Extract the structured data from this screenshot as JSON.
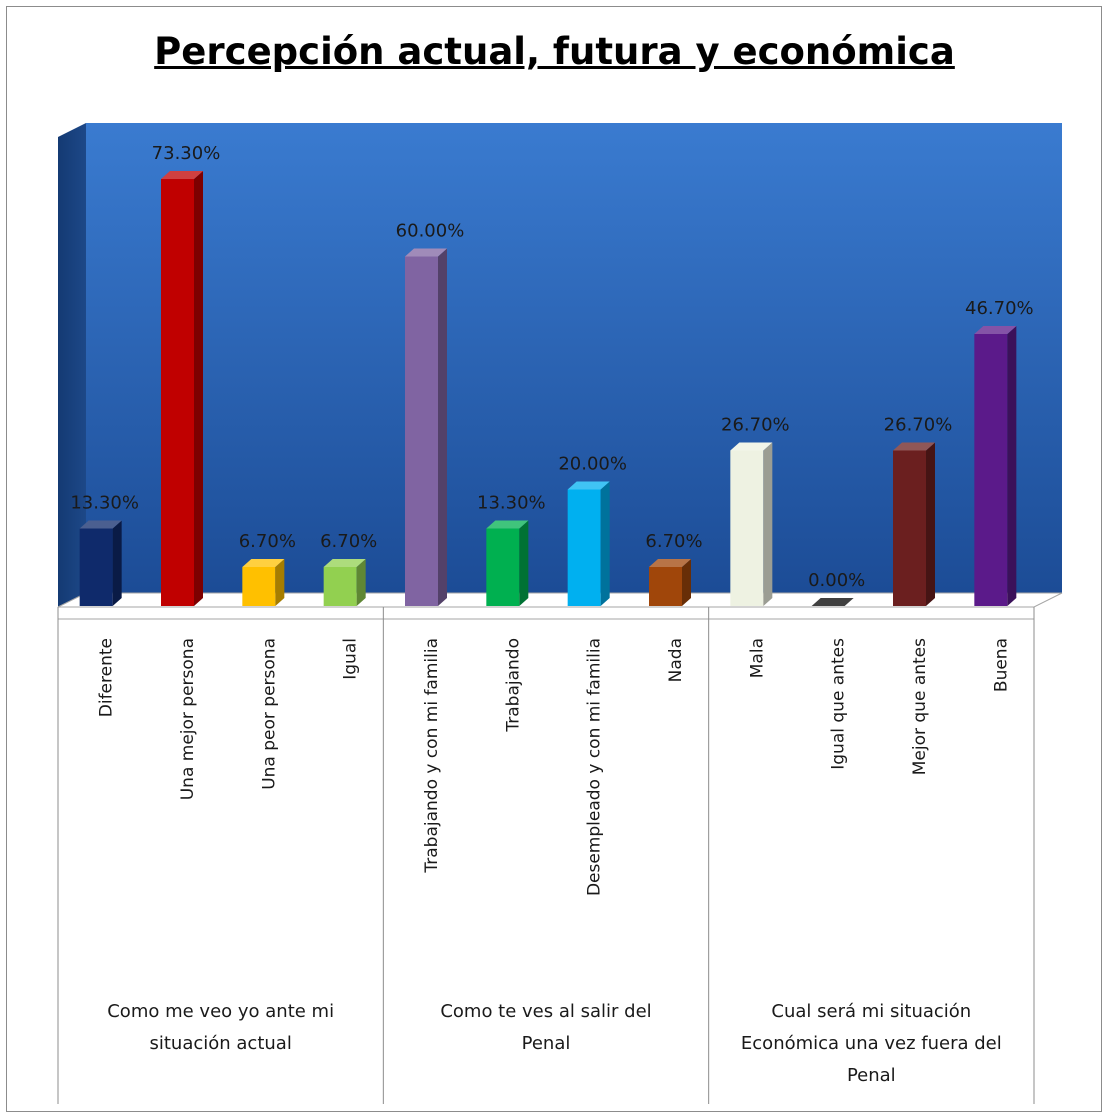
{
  "chart_data": {
    "type": "bar",
    "title": "Percepción actual, futura y económica",
    "ylim": [
      0,
      80
    ],
    "grid": false,
    "legend": "none",
    "groups": [
      {
        "label_lines": [
          "Como me veo yo ante mi",
          "situación actual"
        ],
        "categories": [
          "Diferente",
          "Una mejor persona",
          "Una peor persona",
          "Igual"
        ],
        "values": [
          13.3,
          73.3,
          6.7,
          6.7
        ],
        "value_labels": [
          "13.30%",
          "73.30%",
          "6.70%",
          "6.70%"
        ],
        "colors": [
          "#0f2a6b",
          "#c00000",
          "#ffc000",
          "#92d050"
        ]
      },
      {
        "label_lines": [
          "Como te ves al salir del",
          "Penal"
        ],
        "categories": [
          "Trabajando y con mi familia",
          "Trabajando",
          "Desempleado y con mi familia",
          "Nada"
        ],
        "values": [
          60.0,
          13.3,
          20.0,
          6.7
        ],
        "value_labels": [
          "60.00%",
          "13.30%",
          "20.00%",
          "6.70%"
        ],
        "colors": [
          "#8064a2",
          "#00b050",
          "#00b0f0",
          "#a0460a"
        ]
      },
      {
        "label_lines": [
          "Cual será mi situación",
          "Económica una vez fuera del",
          "Penal"
        ],
        "categories": [
          "Mala",
          "Igual que antes",
          "Mejor que antes",
          "Buena"
        ],
        "values": [
          26.7,
          0.0,
          26.7,
          46.7
        ],
        "value_labels": [
          "26.70%",
          "0.00%",
          "26.70%",
          "46.70%"
        ],
        "colors": [
          "#eef2e2",
          "#000000",
          "#6b1f1f",
          "#5b1a8a"
        ]
      }
    ]
  }
}
